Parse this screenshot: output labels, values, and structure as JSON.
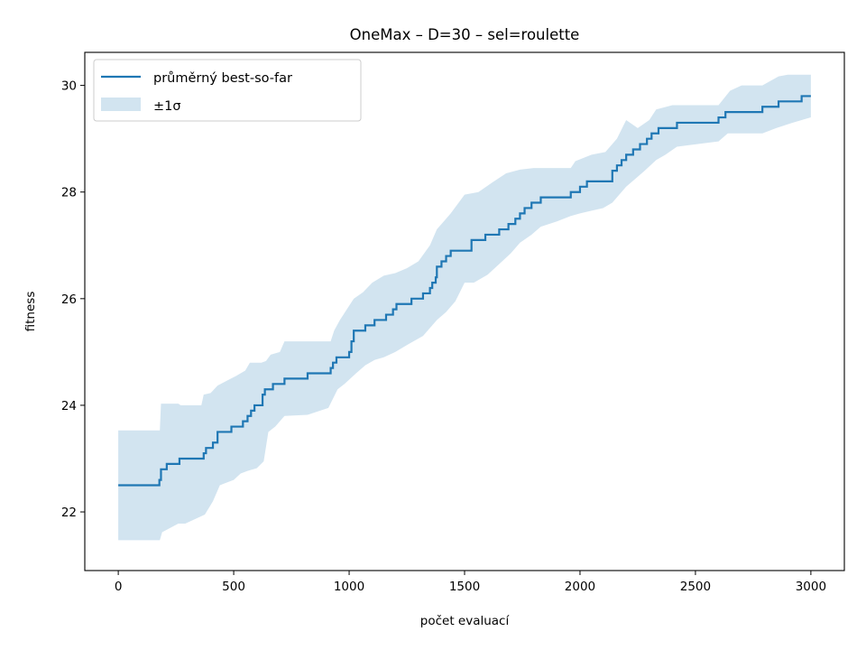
{
  "chart_data": {
    "type": "line",
    "title": "OneMax – D=30 – sel=roulette",
    "xlabel": "počet evaluací",
    "ylabel": "fitness",
    "xlim": [
      -145,
      3145
    ],
    "ylim": [
      20.9,
      30.62
    ],
    "xticks": [
      0,
      500,
      1000,
      1500,
      2000,
      2500,
      3000
    ],
    "xtick_labels": [
      "0",
      "500",
      "1000",
      "1500",
      "2000",
      "2500",
      "3000"
    ],
    "yticks": [
      22,
      24,
      26,
      28,
      30
    ],
    "ytick_labels": [
      "22",
      "24",
      "26",
      "28",
      "30"
    ],
    "grid": false,
    "legend_position": "upper left",
    "legend": [
      {
        "label": "průměrný best-so-far",
        "kind": "line",
        "color": "#1f77b4"
      },
      {
        "label": "±1σ",
        "kind": "band",
        "color": "#1f77b4",
        "opacity": 0.2
      }
    ],
    "series": [
      {
        "name": "průměrný best-so-far",
        "style": "step",
        "color": "#1f77b4",
        "points": [
          [
            0,
            22.5
          ],
          [
            175,
            22.5
          ],
          [
            178,
            22.6
          ],
          [
            185,
            22.8
          ],
          [
            210,
            22.9
          ],
          [
            265,
            23.0
          ],
          [
            370,
            23.1
          ],
          [
            380,
            23.2
          ],
          [
            410,
            23.3
          ],
          [
            430,
            23.5
          ],
          [
            490,
            23.6
          ],
          [
            540,
            23.7
          ],
          [
            560,
            23.8
          ],
          [
            575,
            23.9
          ],
          [
            590,
            24.0
          ],
          [
            625,
            24.2
          ],
          [
            635,
            24.3
          ],
          [
            670,
            24.4
          ],
          [
            720,
            24.5
          ],
          [
            820,
            24.6
          ],
          [
            920,
            24.7
          ],
          [
            930,
            24.8
          ],
          [
            945,
            24.9
          ],
          [
            1000,
            25.0
          ],
          [
            1010,
            25.2
          ],
          [
            1020,
            25.4
          ],
          [
            1070,
            25.5
          ],
          [
            1110,
            25.6
          ],
          [
            1160,
            25.7
          ],
          [
            1190,
            25.8
          ],
          [
            1205,
            25.9
          ],
          [
            1270,
            26.0
          ],
          [
            1320,
            26.1
          ],
          [
            1350,
            26.2
          ],
          [
            1360,
            26.3
          ],
          [
            1375,
            26.4
          ],
          [
            1380,
            26.6
          ],
          [
            1400,
            26.7
          ],
          [
            1420,
            26.8
          ],
          [
            1440,
            26.9
          ],
          [
            1530,
            27.1
          ],
          [
            1590,
            27.2
          ],
          [
            1650,
            27.3
          ],
          [
            1690,
            27.4
          ],
          [
            1720,
            27.5
          ],
          [
            1740,
            27.6
          ],
          [
            1760,
            27.7
          ],
          [
            1790,
            27.8
          ],
          [
            1830,
            27.9
          ],
          [
            1960,
            28.0
          ],
          [
            2000,
            28.1
          ],
          [
            2030,
            28.2
          ],
          [
            2140,
            28.4
          ],
          [
            2160,
            28.5
          ],
          [
            2180,
            28.6
          ],
          [
            2200,
            28.7
          ],
          [
            2230,
            28.8
          ],
          [
            2260,
            28.9
          ],
          [
            2290,
            29.0
          ],
          [
            2310,
            29.1
          ],
          [
            2340,
            29.2
          ],
          [
            2420,
            29.3
          ],
          [
            2600,
            29.4
          ],
          [
            2630,
            29.5
          ],
          [
            2790,
            29.6
          ],
          [
            2860,
            29.7
          ],
          [
            2960,
            29.8
          ],
          [
            3000,
            29.8
          ]
        ]
      }
    ],
    "band": {
      "name": "±1σ",
      "color": "#1f77b4",
      "opacity": 0.2,
      "upper": [
        [
          0,
          23.53
        ],
        [
          180,
          23.53
        ],
        [
          185,
          24.03
        ],
        [
          260,
          24.03
        ],
        [
          270,
          24.0
        ],
        [
          360,
          24.0
        ],
        [
          370,
          24.2
        ],
        [
          400,
          24.23
        ],
        [
          430,
          24.37
        ],
        [
          470,
          24.46
        ],
        [
          510,
          24.55
        ],
        [
          550,
          24.65
        ],
        [
          570,
          24.8
        ],
        [
          620,
          24.8
        ],
        [
          640,
          24.83
        ],
        [
          660,
          24.95
        ],
        [
          700,
          25.0
        ],
        [
          720,
          25.2
        ],
        [
          820,
          25.2
        ],
        [
          920,
          25.2
        ],
        [
          935,
          25.4
        ],
        [
          960,
          25.6
        ],
        [
          1020,
          26.0
        ],
        [
          1060,
          26.12
        ],
        [
          1100,
          26.3
        ],
        [
          1150,
          26.43
        ],
        [
          1200,
          26.48
        ],
        [
          1250,
          26.57
        ],
        [
          1300,
          26.7
        ],
        [
          1350,
          27.0
        ],
        [
          1380,
          27.3
        ],
        [
          1410,
          27.45
        ],
        [
          1440,
          27.6
        ],
        [
          1500,
          27.95
        ],
        [
          1560,
          28.0
        ],
        [
          1620,
          28.18
        ],
        [
          1680,
          28.35
        ],
        [
          1740,
          28.42
        ],
        [
          1800,
          28.45
        ],
        [
          1900,
          28.45
        ],
        [
          1960,
          28.45
        ],
        [
          1980,
          28.58
        ],
        [
          2050,
          28.7
        ],
        [
          2110,
          28.75
        ],
        [
          2160,
          29.0
        ],
        [
          2200,
          29.35
        ],
        [
          2250,
          29.2
        ],
        [
          2300,
          29.35
        ],
        [
          2330,
          29.55
        ],
        [
          2400,
          29.63
        ],
        [
          2600,
          29.63
        ],
        [
          2650,
          29.9
        ],
        [
          2700,
          30.0
        ],
        [
          2790,
          30.0
        ],
        [
          2860,
          30.17
        ],
        [
          2900,
          30.2
        ],
        [
          3000,
          30.2
        ]
      ],
      "lower": [
        [
          0,
          21.47
        ],
        [
          180,
          21.47
        ],
        [
          190,
          21.62
        ],
        [
          260,
          21.78
        ],
        [
          290,
          21.78
        ],
        [
          375,
          21.95
        ],
        [
          410,
          22.2
        ],
        [
          440,
          22.5
        ],
        [
          470,
          22.55
        ],
        [
          500,
          22.6
        ],
        [
          530,
          22.72
        ],
        [
          560,
          22.77
        ],
        [
          600,
          22.82
        ],
        [
          630,
          22.95
        ],
        [
          650,
          23.5
        ],
        [
          680,
          23.6
        ],
        [
          720,
          23.8
        ],
        [
          820,
          23.82
        ],
        [
          910,
          23.95
        ],
        [
          950,
          24.3
        ],
        [
          980,
          24.4
        ],
        [
          1030,
          24.6
        ],
        [
          1070,
          24.75
        ],
        [
          1110,
          24.85
        ],
        [
          1150,
          24.9
        ],
        [
          1200,
          25.0
        ],
        [
          1250,
          25.13
        ],
        [
          1320,
          25.3
        ],
        [
          1360,
          25.5
        ],
        [
          1380,
          25.6
        ],
        [
          1420,
          25.75
        ],
        [
          1460,
          25.95
        ],
        [
          1500,
          26.3
        ],
        [
          1540,
          26.3
        ],
        [
          1600,
          26.45
        ],
        [
          1650,
          26.65
        ],
        [
          1700,
          26.85
        ],
        [
          1740,
          27.05
        ],
        [
          1790,
          27.2
        ],
        [
          1830,
          27.35
        ],
        [
          1900,
          27.45
        ],
        [
          1960,
          27.55
        ],
        [
          2000,
          27.6
        ],
        [
          2050,
          27.65
        ],
        [
          2100,
          27.7
        ],
        [
          2140,
          27.8
        ],
        [
          2170,
          27.95
        ],
        [
          2200,
          28.1
        ],
        [
          2240,
          28.25
        ],
        [
          2280,
          28.4
        ],
        [
          2330,
          28.6
        ],
        [
          2370,
          28.7
        ],
        [
          2420,
          28.85
        ],
        [
          2600,
          28.95
        ],
        [
          2640,
          29.1
        ],
        [
          2790,
          29.1
        ],
        [
          2850,
          29.2
        ],
        [
          2920,
          29.3
        ],
        [
          3000,
          29.4
        ]
      ]
    }
  }
}
